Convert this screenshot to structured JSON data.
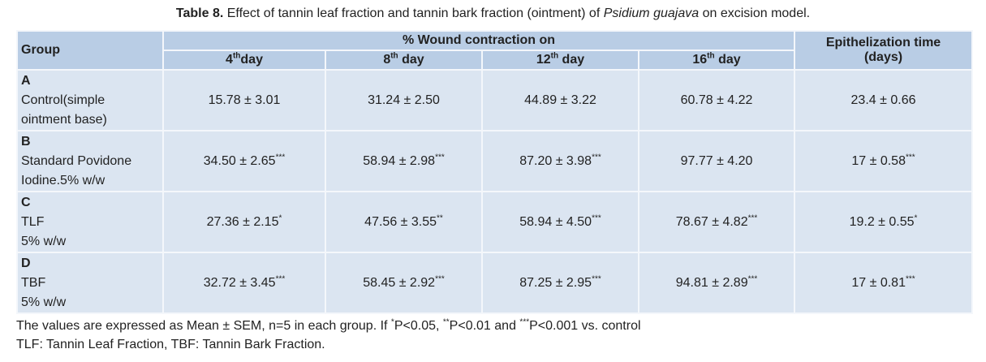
{
  "caption": [
    {
      "bold": "Table 8."
    },
    {
      "text": " Effect of tannin leaf fraction and tannin bark fraction (ointment) of "
    },
    {
      "italic": "Psidium guajava"
    },
    {
      "text": " on excision model."
    }
  ],
  "table": {
    "header": {
      "group": "Group",
      "wound": "% Wound contraction on",
      "days": [
        {
          "number": "4",
          "sup": "th",
          "word": "day"
        },
        {
          "number": "8",
          "sup": "th",
          "word": " day"
        },
        {
          "number": "12",
          "sup": "th",
          "word": " day"
        },
        {
          "number": "16",
          "sup": "th",
          "word": " day"
        }
      ],
      "epithelization": [
        "Epithelization time",
        "(days)"
      ]
    },
    "rows": [
      {
        "letter": "A",
        "lines": [
          "Control(simple",
          "ointment base)"
        ],
        "cells": [
          {
            "value": "15.78 ± 3.01"
          },
          {
            "value": "31.24 ± 2.50"
          },
          {
            "value": "44.89 ± 3.22"
          },
          {
            "value": "60.78 ± 4.22"
          },
          {
            "value": "23.4 ± 0.66"
          }
        ]
      },
      {
        "letter": "B",
        "lines": [
          "Standard Povidone",
          "Iodine.5% w/w"
        ],
        "cells": [
          {
            "value": "34.50 ± 2.65",
            "sig": "***"
          },
          {
            "value": "58.94 ± 2.98",
            "sig": "***"
          },
          {
            "value": "87.20 ± 3.98",
            "sig": "***"
          },
          {
            "value": "97.77 ± 4.20"
          },
          {
            "value": "17 ± 0.58",
            "sig": "***"
          }
        ]
      },
      {
        "letter": "C",
        "lines": [
          "TLF",
          "5% w/w"
        ],
        "cells": [
          {
            "value": "27.36 ± 2.15",
            "sig": "*"
          },
          {
            "value": "47.56 ± 3.55",
            "sig": "**"
          },
          {
            "value": "58.94 ± 4.50",
            "sig": "***"
          },
          {
            "value": "78.67 ± 4.82",
            "sig": "***"
          },
          {
            "value": "19.2 ± 0.55",
            "sig": "*"
          }
        ]
      },
      {
        "letter": "D",
        "lines": [
          "TBF",
          "5% w/w"
        ],
        "cells": [
          {
            "value": "32.72 ± 3.45",
            "sig": "***"
          },
          {
            "value": "58.45 ± 2.92",
            "sig": "***"
          },
          {
            "value": "87.25 ± 2.95",
            "sig": "***"
          },
          {
            "value": "94.81 ± 2.89",
            "sig": "***"
          },
          {
            "value": "17 ± 0.81",
            "sig": "***"
          }
        ]
      }
    ]
  },
  "footnotes": [
    [
      {
        "text": "The values are expressed as Mean ± SEM, n=5 in each group. If "
      },
      {
        "sup": "*"
      },
      {
        "text": "P<0.05, "
      },
      {
        "sup": "**"
      },
      {
        "text": "P<0.01 and "
      },
      {
        "sup": "***"
      },
      {
        "text": "P<0.001 vs. control"
      }
    ],
    [
      {
        "text": "TLF: Tannin Leaf Fraction, TBF: Tannin Bark Fraction."
      }
    ]
  ]
}
